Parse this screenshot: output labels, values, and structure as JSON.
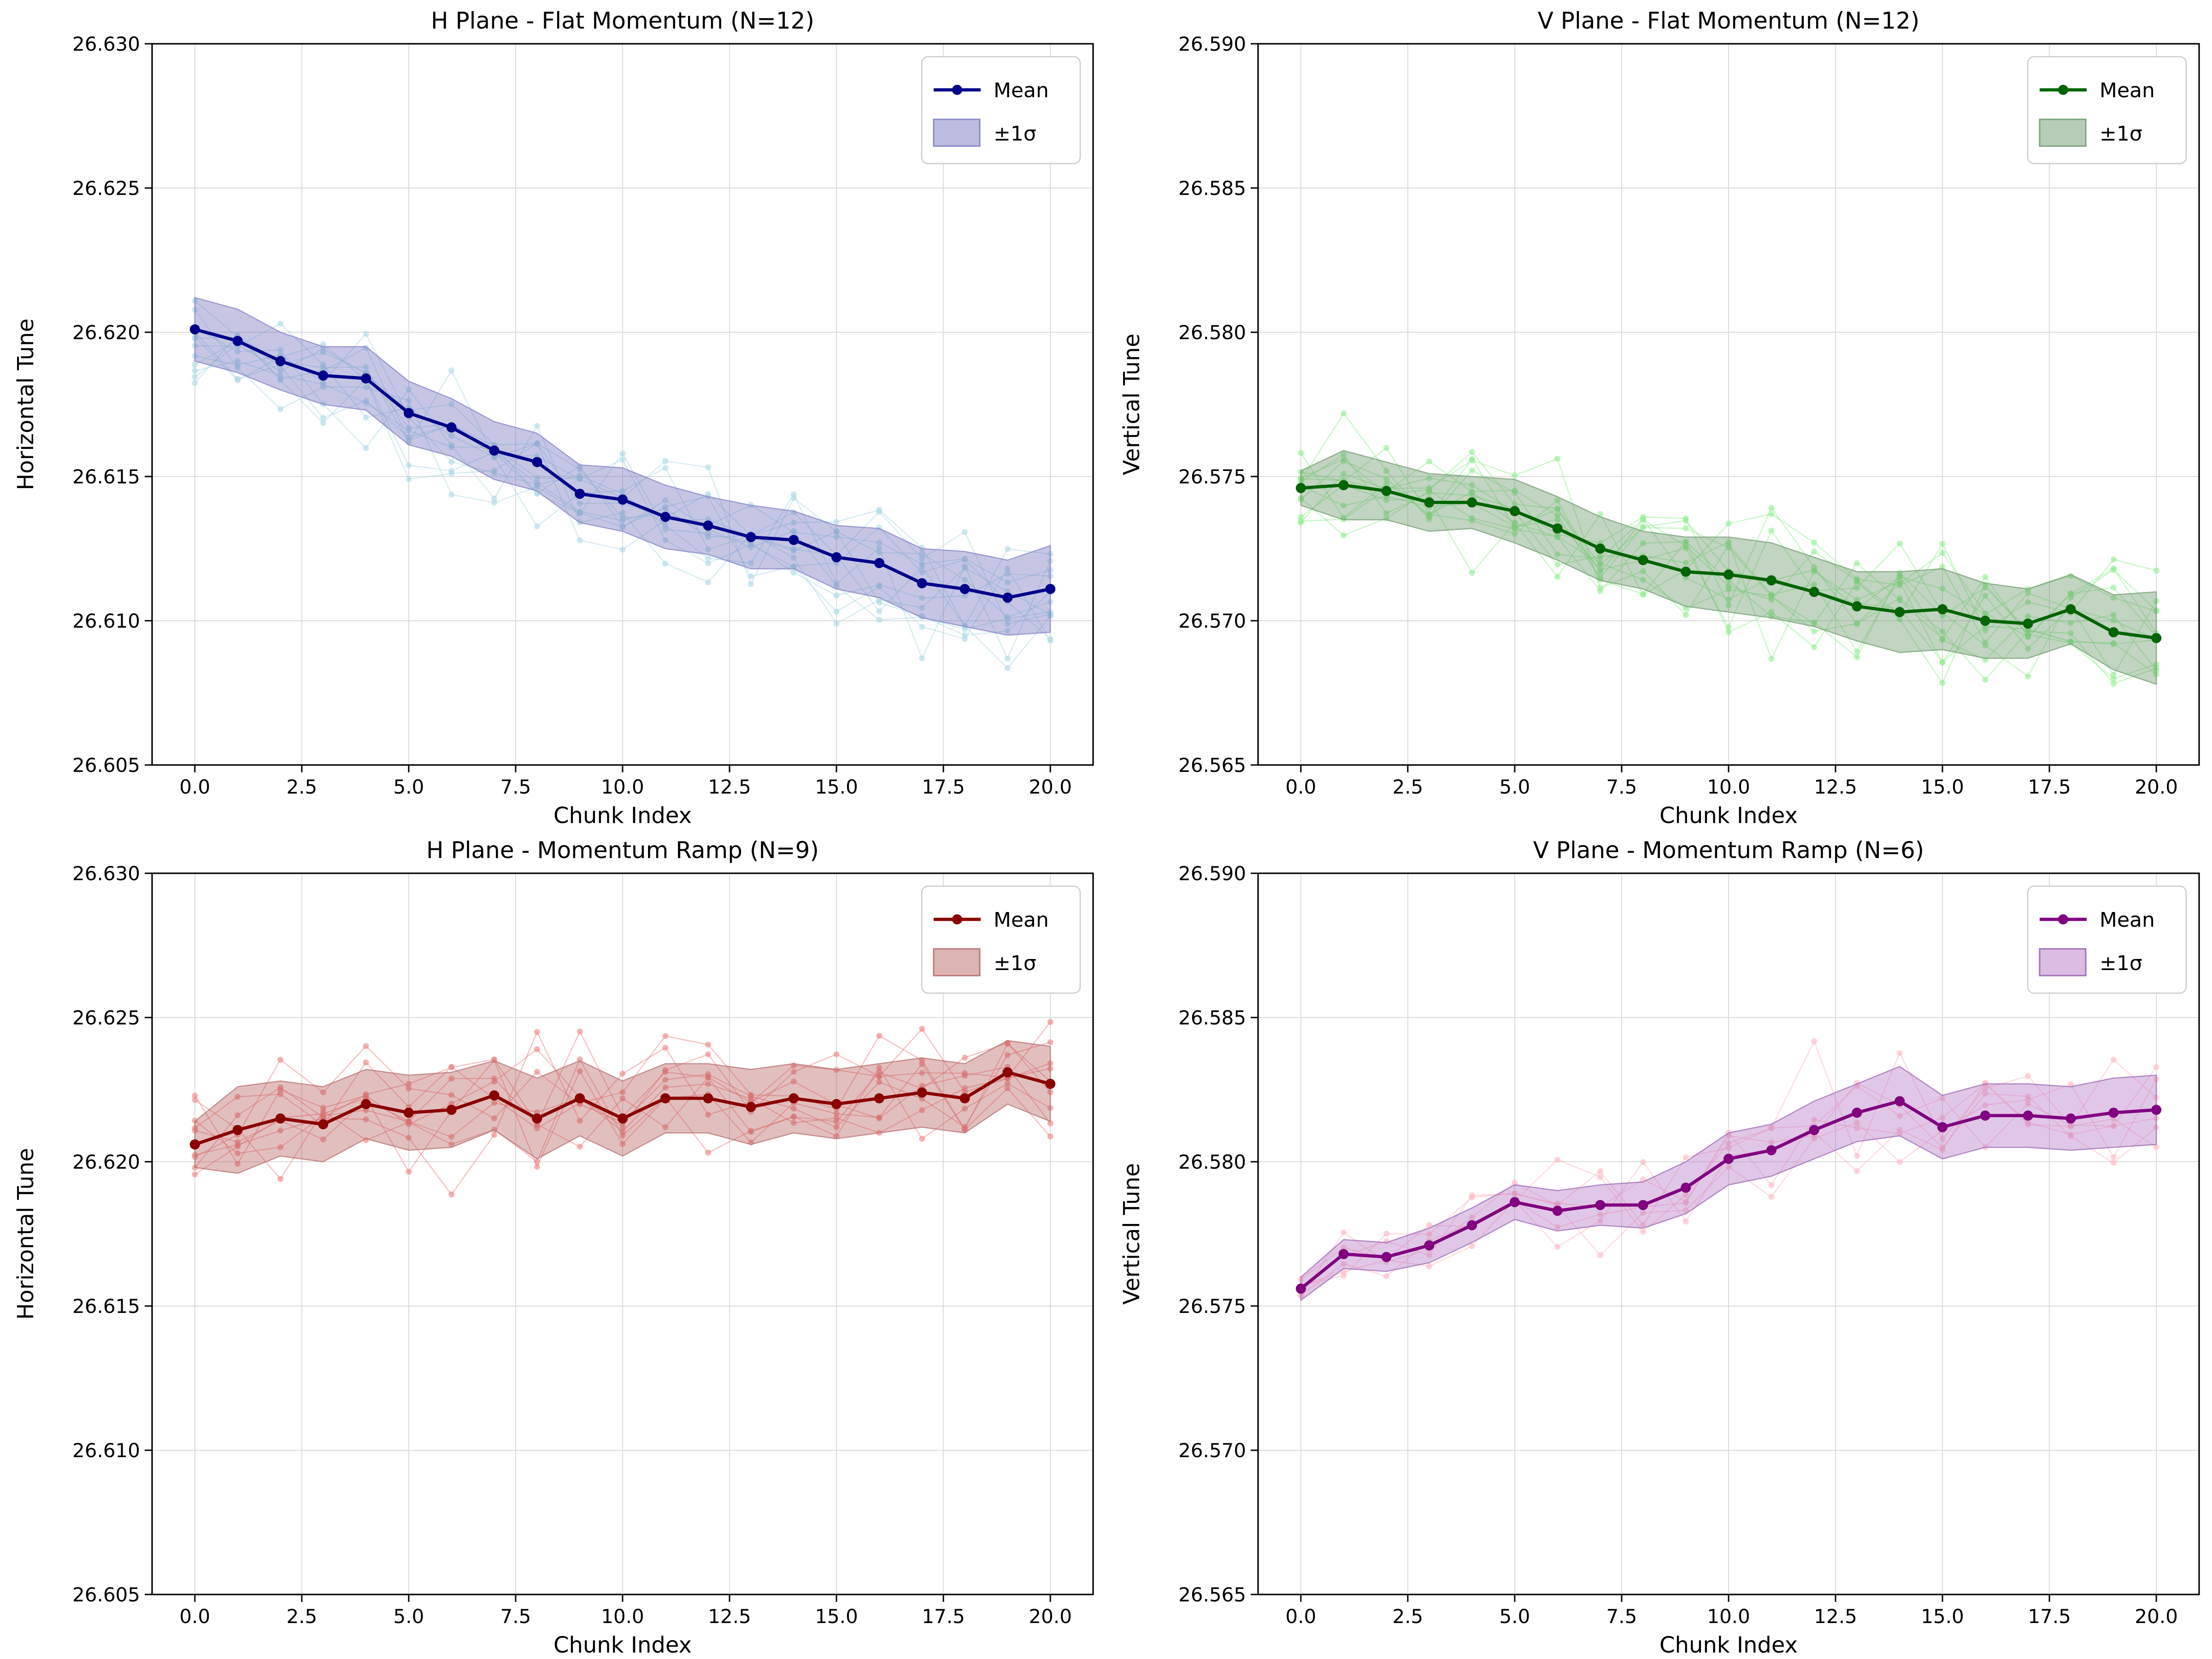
{
  "figure": {
    "background": "#ffffff",
    "xlabel": "Chunk Index",
    "xlim": [
      -1,
      21
    ],
    "x_tick_values": [
      0,
      2.5,
      5,
      7.5,
      10,
      12.5,
      15,
      17.5,
      20
    ],
    "x_tick_labels": [
      "0.0",
      "2.5",
      "5.0",
      "7.5",
      "10.0",
      "12.5",
      "15.0",
      "17.5",
      "20.0"
    ],
    "grid": true,
    "legend": {
      "mean_label": "Mean",
      "band_label": "±1σ"
    }
  },
  "chart_data": [
    {
      "type": "line",
      "title": "H Plane - Flat Momentum (N=12)",
      "ylabel": "Horizontal Tune",
      "xlabel": "Chunk Index",
      "ylim": [
        26.605,
        26.63
      ],
      "y_tick_values": [
        26.605,
        26.61,
        26.615,
        26.62,
        26.625,
        26.63
      ],
      "y_tick_labels": [
        "26.605",
        "26.610",
        "26.615",
        "26.620",
        "26.625",
        "26.630"
      ],
      "x": [
        0,
        1,
        2,
        3,
        4,
        5,
        6,
        7,
        8,
        9,
        10,
        11,
        12,
        13,
        14,
        15,
        16,
        17,
        18,
        19,
        20
      ],
      "mean": [
        26.6201,
        26.6197,
        26.619,
        26.6185,
        26.6184,
        26.6172,
        26.6167,
        26.6159,
        26.6155,
        26.6144,
        26.6142,
        26.6136,
        26.6133,
        26.6129,
        26.6128,
        26.6122,
        26.612,
        26.6113,
        26.6111,
        26.6108,
        26.6111
      ],
      "sigma": [
        0.0011,
        0.0011,
        0.001,
        0.001,
        0.0011,
        0.0011,
        0.001,
        0.001,
        0.001,
        0.001,
        0.0011,
        0.0011,
        0.001,
        0.0011,
        0.001,
        0.0011,
        0.0012,
        0.0012,
        0.0013,
        0.0013,
        0.0015
      ],
      "n_traces": 12,
      "legend": [
        "Mean",
        "±1σ"
      ],
      "colors": {
        "mean": "#00008b",
        "trace": "#add8e6",
        "band_fill": "#6a6ab8",
        "band_edge": "#8888cc"
      }
    },
    {
      "type": "line",
      "title": "V Plane - Flat Momentum (N=12)",
      "ylabel": "Vertical Tune",
      "xlabel": "Chunk Index",
      "ylim": [
        26.565,
        26.59
      ],
      "y_tick_values": [
        26.565,
        26.57,
        26.575,
        26.58,
        26.585,
        26.59
      ],
      "y_tick_labels": [
        "26.565",
        "26.570",
        "26.575",
        "26.580",
        "26.585",
        "26.590"
      ],
      "x": [
        0,
        1,
        2,
        3,
        4,
        5,
        6,
        7,
        8,
        9,
        10,
        11,
        12,
        13,
        14,
        15,
        16,
        17,
        18,
        19,
        20
      ],
      "mean": [
        26.5746,
        26.5747,
        26.5745,
        26.5741,
        26.5741,
        26.5738,
        26.5732,
        26.5725,
        26.5721,
        26.5717,
        26.5716,
        26.5714,
        26.571,
        26.5705,
        26.5703,
        26.5704,
        26.57,
        26.5699,
        26.5704,
        26.5696,
        26.5694
      ],
      "sigma": [
        0.0006,
        0.0012,
        0.001,
        0.001,
        0.0009,
        0.0011,
        0.0011,
        0.0011,
        0.001,
        0.0012,
        0.0013,
        0.0013,
        0.0012,
        0.0012,
        0.0014,
        0.0014,
        0.0013,
        0.0012,
        0.0012,
        0.0013,
        0.0016
      ],
      "n_traces": 12,
      "legend": [
        "Mean",
        "±1σ"
      ],
      "colors": {
        "mean": "#006400",
        "trace": "#90ee90",
        "band_fill": "#5e8f5e",
        "band_edge": "#7aa37a"
      }
    },
    {
      "type": "line",
      "title": "H Plane - Momentum Ramp (N=9)",
      "ylabel": "Horizontal Tune",
      "xlabel": "Chunk Index",
      "ylim": [
        26.605,
        26.63
      ],
      "y_tick_values": [
        26.605,
        26.61,
        26.615,
        26.62,
        26.625,
        26.63
      ],
      "y_tick_labels": [
        "26.605",
        "26.610",
        "26.615",
        "26.620",
        "26.625",
        "26.630"
      ],
      "x": [
        0,
        1,
        2,
        3,
        4,
        5,
        6,
        7,
        8,
        9,
        10,
        11,
        12,
        13,
        14,
        15,
        16,
        17,
        18,
        19,
        20
      ],
      "mean": [
        26.6206,
        26.6211,
        26.6215,
        26.6213,
        26.622,
        26.6217,
        26.6218,
        26.6223,
        26.6215,
        26.6222,
        26.6215,
        26.6222,
        26.6222,
        26.6219,
        26.6222,
        26.622,
        26.6222,
        26.6224,
        26.6222,
        26.6231,
        26.6227
      ],
      "sigma": [
        0.0008,
        0.0015,
        0.0013,
        0.0013,
        0.0012,
        0.0013,
        0.0013,
        0.0012,
        0.0014,
        0.0013,
        0.0013,
        0.0012,
        0.0012,
        0.0013,
        0.0012,
        0.0012,
        0.0012,
        0.0012,
        0.0012,
        0.0011,
        0.0013
      ],
      "n_traces": 9,
      "legend": [
        "Mean",
        "±1σ"
      ],
      "colors": {
        "mean": "#8b0000",
        "trace": "#f08080",
        "band_fill": "#b45858",
        "band_edge": "#bb7777"
      }
    },
    {
      "type": "line",
      "title": "V Plane - Momentum Ramp (N=6)",
      "ylabel": "Vertical Tune",
      "xlabel": "Chunk Index",
      "ylim": [
        26.565,
        26.59
      ],
      "y_tick_values": [
        26.565,
        26.57,
        26.575,
        26.58,
        26.585,
        26.59
      ],
      "y_tick_labels": [
        "26.565",
        "26.570",
        "26.575",
        "26.580",
        "26.585",
        "26.590"
      ],
      "x": [
        0,
        1,
        2,
        3,
        4,
        5,
        6,
        7,
        8,
        9,
        10,
        11,
        12,
        13,
        14,
        15,
        16,
        17,
        18,
        19,
        20
      ],
      "mean": [
        26.5756,
        26.5768,
        26.5767,
        26.5771,
        26.5778,
        26.5786,
        26.5783,
        26.5785,
        26.5785,
        26.5791,
        26.5801,
        26.5804,
        26.5811,
        26.5817,
        26.5821,
        26.5812,
        26.5816,
        26.5816,
        26.5815,
        26.5817,
        26.5818
      ],
      "sigma": [
        0.0004,
        0.0005,
        0.0005,
        0.0006,
        0.0006,
        0.0006,
        0.0007,
        0.0007,
        0.0008,
        0.0009,
        0.0009,
        0.0009,
        0.001,
        0.001,
        0.0012,
        0.0011,
        0.0011,
        0.0011,
        0.0011,
        0.0012,
        0.0012
      ],
      "n_traces": 6,
      "legend": [
        "Mean",
        "±1σ"
      ],
      "colors": {
        "mean": "#800080",
        "trace": "#ffb6c1",
        "band_fill": "#b06cc0",
        "band_edge": "#a070b8"
      }
    }
  ]
}
